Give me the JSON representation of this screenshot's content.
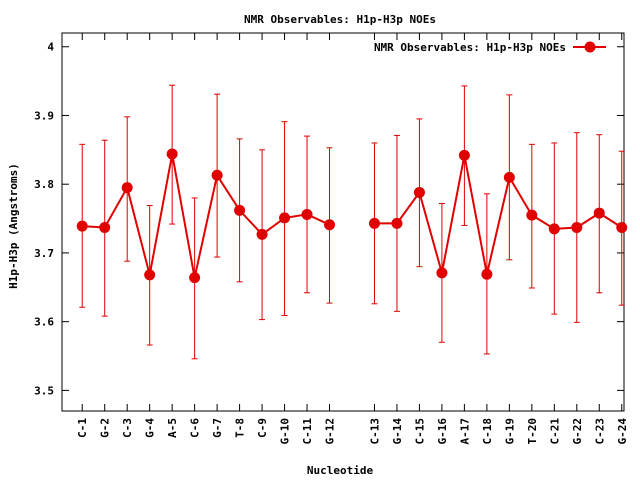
{
  "chart_data": {
    "type": "line",
    "title": "NMR Observables: H1p-H3p NOEs",
    "xlabel": "Nucleotide",
    "ylabel": "H1p-H3p (Angstroms)",
    "ylim": [
      3.47,
      4.02
    ],
    "yticks": [
      3.5,
      3.6,
      3.7,
      3.8,
      3.9,
      4
    ],
    "xlim": [
      0.1,
      25.1
    ],
    "grid": false,
    "legend_position": "top-right",
    "categories": [
      "C-1",
      "G-2",
      "C-3",
      "G-4",
      "A-5",
      "C-6",
      "G-7",
      "T-8",
      "C-9",
      "G-10",
      "C-11",
      "G-12",
      "C-13",
      "G-14",
      "C-15",
      "G-16",
      "A-17",
      "C-18",
      "G-19",
      "T-20",
      "C-21",
      "G-22",
      "C-23",
      "G-24"
    ],
    "x": [
      1,
      2,
      3,
      4,
      5,
      6,
      7,
      8,
      9,
      10,
      11,
      12,
      14,
      15,
      16,
      17,
      18,
      19,
      20,
      21,
      22,
      23,
      24,
      25
    ],
    "segments": [
      [
        0,
        11
      ],
      [
        12,
        23
      ]
    ],
    "series": [
      {
        "name": "NMR Observables: H1p-H3p NOEs",
        "color": "#e00000",
        "values": [
          3.739,
          3.737,
          3.795,
          3.668,
          3.844,
          3.664,
          3.813,
          3.762,
          3.727,
          3.751,
          3.756,
          3.741,
          3.743,
          3.743,
          3.788,
          3.671,
          3.842,
          3.669,
          3.81,
          3.755,
          3.735,
          3.737,
          3.758,
          3.737
        ],
        "err_low": [
          3.621,
          3.608,
          3.688,
          3.566,
          3.742,
          3.546,
          3.694,
          3.658,
          3.603,
          3.609,
          3.642,
          3.627,
          3.626,
          3.615,
          3.68,
          3.57,
          3.74,
          3.553,
          3.69,
          3.649,
          3.611,
          3.599,
          3.642,
          3.624
        ],
        "err_high": [
          3.858,
          3.864,
          3.898,
          3.769,
          3.944,
          3.78,
          3.931,
          3.866,
          3.85,
          3.891,
          3.87,
          3.853,
          3.86,
          3.871,
          3.895,
          3.772,
          3.943,
          3.786,
          3.93,
          3.858,
          3.86,
          3.875,
          3.872,
          3.848
        ]
      }
    ]
  }
}
